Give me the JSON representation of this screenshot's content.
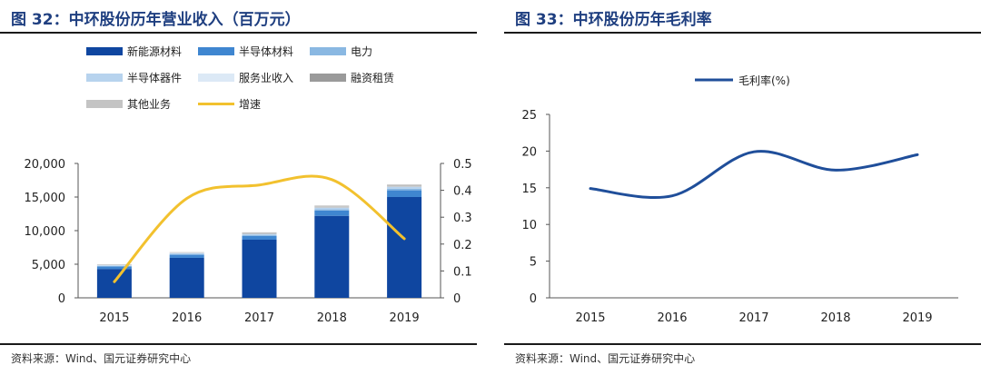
{
  "left": {
    "title": "图 32：中环股份历年营业收入（百万元）",
    "source": "资料来源：Wind、国元证券研究中心"
  },
  "right": {
    "title": "图 33：中环股份历年毛利率",
    "source": "资料来源：Wind、国元证券研究中心"
  },
  "chart_data": [
    {
      "type": "bar",
      "stacked": true,
      "categories": [
        "2015",
        "2016",
        "2017",
        "2018",
        "2019"
      ],
      "ylim": [
        0,
        20000
      ],
      "y_ticks": [
        "0",
        "5,000",
        "10,000",
        "15,000",
        "20,000"
      ],
      "y2lim": [
        0,
        0.5
      ],
      "y2_ticks": [
        "0",
        "0.1",
        "0.2",
        "0.3",
        "0.4",
        "0.5"
      ],
      "series": [
        {
          "name": "新能源材料",
          "color": "#0f46a0",
          "values": [
            4300,
            5950,
            8650,
            12200,
            15000
          ]
        },
        {
          "name": "半导体材料",
          "color": "#3f86d0",
          "values": [
            350,
            450,
            550,
            800,
            1000
          ]
        },
        {
          "name": "电力",
          "color": "#8ab8e2",
          "values": [
            100,
            130,
            150,
            200,
            250
          ]
        },
        {
          "name": "半导体器件",
          "color": "#b7d3ee",
          "values": [
            100,
            120,
            150,
            200,
            250
          ]
        },
        {
          "name": "服务业收入",
          "color": "#dce9f6",
          "values": [
            50,
            50,
            50,
            60,
            70
          ]
        },
        {
          "name": "融资租赁",
          "color": "#9a9a9a",
          "values": [
            0,
            0,
            50,
            80,
            100
          ]
        },
        {
          "name": "其他业务",
          "color": "#c4c4c4",
          "values": [
            100,
            100,
            150,
            200,
            200
          ]
        }
      ],
      "line_series": {
        "name": "增速",
        "color": "#f2c12e",
        "axis": "right",
        "values": [
          0.06,
          0.37,
          0.42,
          0.44,
          0.22
        ]
      },
      "legend_placement": "top-left",
      "grid": false
    },
    {
      "type": "line",
      "categories": [
        "2015",
        "2016",
        "2017",
        "2018",
        "2019"
      ],
      "ylim": [
        0,
        25
      ],
      "y_ticks": [
        "0",
        "5",
        "10",
        "15",
        "20",
        "25"
      ],
      "series": [
        {
          "name": "毛利率(%)",
          "color": "#1f4e9a",
          "values": [
            14.9,
            13.9,
            19.9,
            17.4,
            19.5
          ]
        }
      ],
      "legend_placement": "top-center",
      "grid": false
    }
  ]
}
